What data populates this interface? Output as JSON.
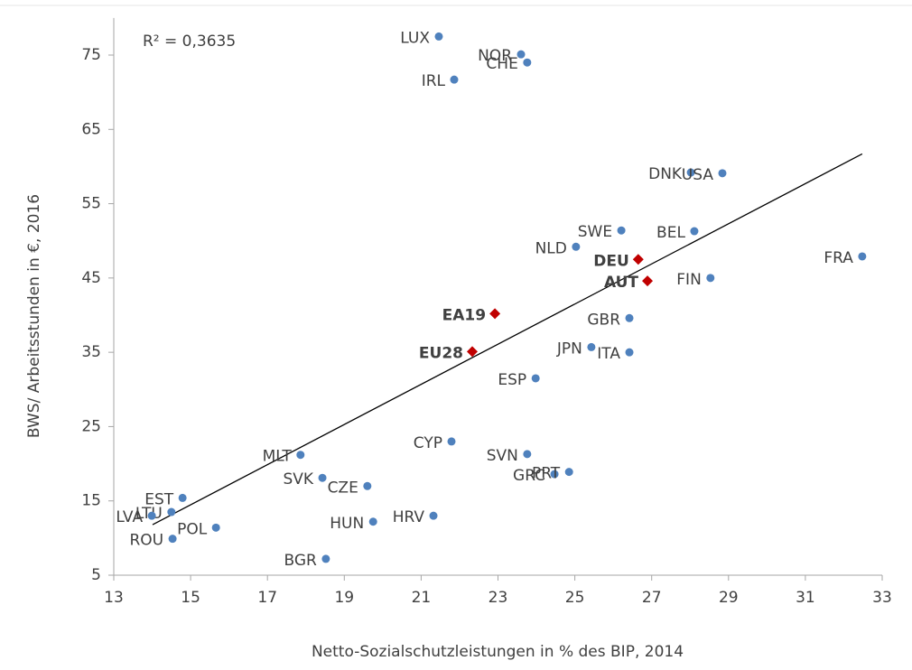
{
  "chart_data": {
    "type": "scatter",
    "annotation": "R² = 0,3635",
    "x_label": "Netto-Sozialschutzleistungen in % des BIP, 2014",
    "y_label": "BWS/ Arbeitsstunden in €, 2016",
    "xlim": [
      13,
      33
    ],
    "ylim": [
      5,
      80
    ],
    "xticks": [
      13,
      15,
      17,
      19,
      21,
      23,
      25,
      27,
      29,
      31,
      33
    ],
    "yticks": [
      5,
      15,
      25,
      35,
      45,
      55,
      65,
      75
    ],
    "series": [
      {
        "color": "#4f81bd",
        "marker": "circle",
        "label_weight": "normal",
        "labels": [
          "LUX",
          "NOR",
          "CHE",
          "IRL",
          "DNK",
          "USA",
          "SWE",
          "BEL",
          "NLD",
          "FRA",
          "FIN",
          "GBR",
          "JPN",
          "ITA",
          "ESP",
          "CYP",
          "SVN",
          "MLT",
          "GRC",
          "PRT",
          "SVK",
          "CZE",
          "EST",
          "LTU",
          "LVA",
          "HRV",
          "HUN",
          "POL",
          "ROU",
          "BGR"
        ],
        "x": [
          21.46,
          23.6,
          23.76,
          21.86,
          28.02,
          28.84,
          26.21,
          28.11,
          25.03,
          32.48,
          28.53,
          26.42,
          25.43,
          26.42,
          23.98,
          21.79,
          23.76,
          17.86,
          24.47,
          24.85,
          18.43,
          19.6,
          14.79,
          14.5,
          13.99,
          21.32,
          19.75,
          15.66,
          14.53,
          18.52
        ],
        "y": [
          77.5,
          75.1,
          74.0,
          71.7,
          59.2,
          59.1,
          51.4,
          51.3,
          49.2,
          47.9,
          45.0,
          39.6,
          35.7,
          35.0,
          31.5,
          23.0,
          21.3,
          21.2,
          18.6,
          18.9,
          18.1,
          17.0,
          15.4,
          13.5,
          13.0,
          13.0,
          12.2,
          11.4,
          9.9,
          7.2
        ]
      },
      {
        "color": "#c00000",
        "marker": "diamond",
        "label_weight": "bold",
        "labels": [
          "DEU",
          "AUT",
          "EA19",
          "EU28"
        ],
        "x": [
          26.65,
          26.89,
          22.92,
          22.33
        ],
        "y": [
          47.5,
          44.6,
          40.2,
          35.1
        ]
      }
    ],
    "trendline": {
      "color": "#000000",
      "x": [
        14.01,
        32.48
      ],
      "y": [
        11.8,
        61.7
      ]
    }
  }
}
